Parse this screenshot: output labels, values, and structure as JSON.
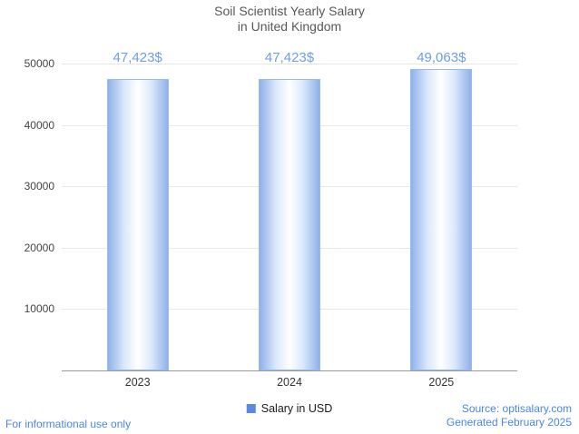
{
  "title": {
    "line1": "Soil Scientist Yearly Salary",
    "line2": "in United Kingdom"
  },
  "chart_data": {
    "type": "bar",
    "title": "Soil Scientist Yearly Salary in United Kingdom",
    "categories": [
      "2023",
      "2024",
      "2025"
    ],
    "values": [
      47423,
      47423,
      49063
    ],
    "value_labels": [
      "47,423$",
      "47,423$",
      "49,063$"
    ],
    "xlabel": "",
    "ylabel": "",
    "ylim": [
      0,
      50000
    ],
    "yticks": [
      10000,
      20000,
      30000,
      40000,
      50000
    ],
    "grid": true,
    "legend": {
      "label": "Salary in USD",
      "position": "bottom-center",
      "swatch_color": "#5b87e5"
    },
    "colors": {
      "bar_edge": "#8fb1ea",
      "bar_center": "#ffffff",
      "value_label": "#6f9de3",
      "axis_text": "#444444",
      "baseline": "#9a9a9a",
      "gridline": "#e6e6e6",
      "footer_blue": "#4a86e8",
      "title_gray": "#57585a"
    }
  },
  "footer": {
    "disclaimer": "For informational use only",
    "source": "Source: optisalary.com",
    "generated": "Generated February 2025"
  }
}
